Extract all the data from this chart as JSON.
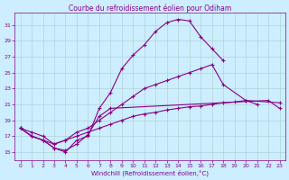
{
  "title": "Courbe du refroidissement éolien pour Odiham",
  "xlabel": "Windchill (Refroidissement éolien,°C)",
  "bg_color": "#cceeff",
  "grid_color": "#aacccc",
  "line_color": "#880088",
  "xlim": [
    -0.5,
    23.5
  ],
  "ylim": [
    14.0,
    32.5
  ],
  "xticks": [
    0,
    1,
    2,
    3,
    4,
    5,
    6,
    7,
    8,
    9,
    10,
    11,
    12,
    13,
    14,
    15,
    16,
    17,
    18,
    19,
    20,
    21,
    22,
    23
  ],
  "yticks": [
    15,
    17,
    19,
    21,
    23,
    25,
    27,
    29,
    31
  ],
  "series1_x": [
    0,
    1,
    2,
    3,
    4,
    5,
    6,
    7,
    8,
    9,
    10,
    11,
    12,
    13,
    14,
    15,
    16,
    17,
    18
  ],
  "series1_y": [
    18.0,
    17.0,
    16.5,
    15.5,
    15.0,
    16.5,
    17.0,
    20.5,
    22.5,
    25.5,
    27.2,
    28.5,
    30.2,
    31.3,
    31.7,
    31.5,
    29.5,
    28.0,
    26.5
  ],
  "series2_x": [
    0,
    1,
    2,
    3,
    4,
    5,
    6,
    7,
    8,
    22,
    23
  ],
  "series2_y": [
    18.0,
    17.0,
    16.5,
    15.5,
    15.2,
    16.0,
    17.2,
    19.5,
    20.5,
    21.5,
    20.5
  ],
  "series3_x": [
    0,
    1,
    2,
    3,
    4,
    5,
    6,
    7,
    8,
    9,
    10,
    11,
    12,
    13,
    14,
    15,
    16,
    17,
    18,
    20,
    21
  ],
  "series3_y": [
    18.0,
    17.5,
    17.0,
    16.0,
    16.5,
    17.5,
    18.0,
    19.0,
    20.0,
    21.0,
    22.0,
    23.0,
    23.5,
    24.0,
    24.5,
    25.0,
    25.5,
    26.0,
    23.5,
    21.5,
    21.0
  ],
  "series4_x": [
    0,
    1,
    2,
    3,
    4,
    5,
    6,
    7,
    8,
    9,
    10,
    11,
    12,
    13,
    14,
    15,
    16,
    17,
    18,
    19,
    20,
    23
  ],
  "series4_y": [
    18.0,
    17.0,
    16.5,
    16.0,
    16.5,
    17.0,
    17.5,
    18.0,
    18.5,
    19.0,
    19.5,
    19.8,
    20.0,
    20.3,
    20.5,
    20.7,
    20.8,
    21.0,
    21.2,
    21.3,
    21.5,
    21.2
  ],
  "marker": "+",
  "markersize": 3,
  "linewidth": 0.8,
  "title_fontsize": 5.5,
  "label_fontsize": 5,
  "tick_fontsize": 4.5
}
